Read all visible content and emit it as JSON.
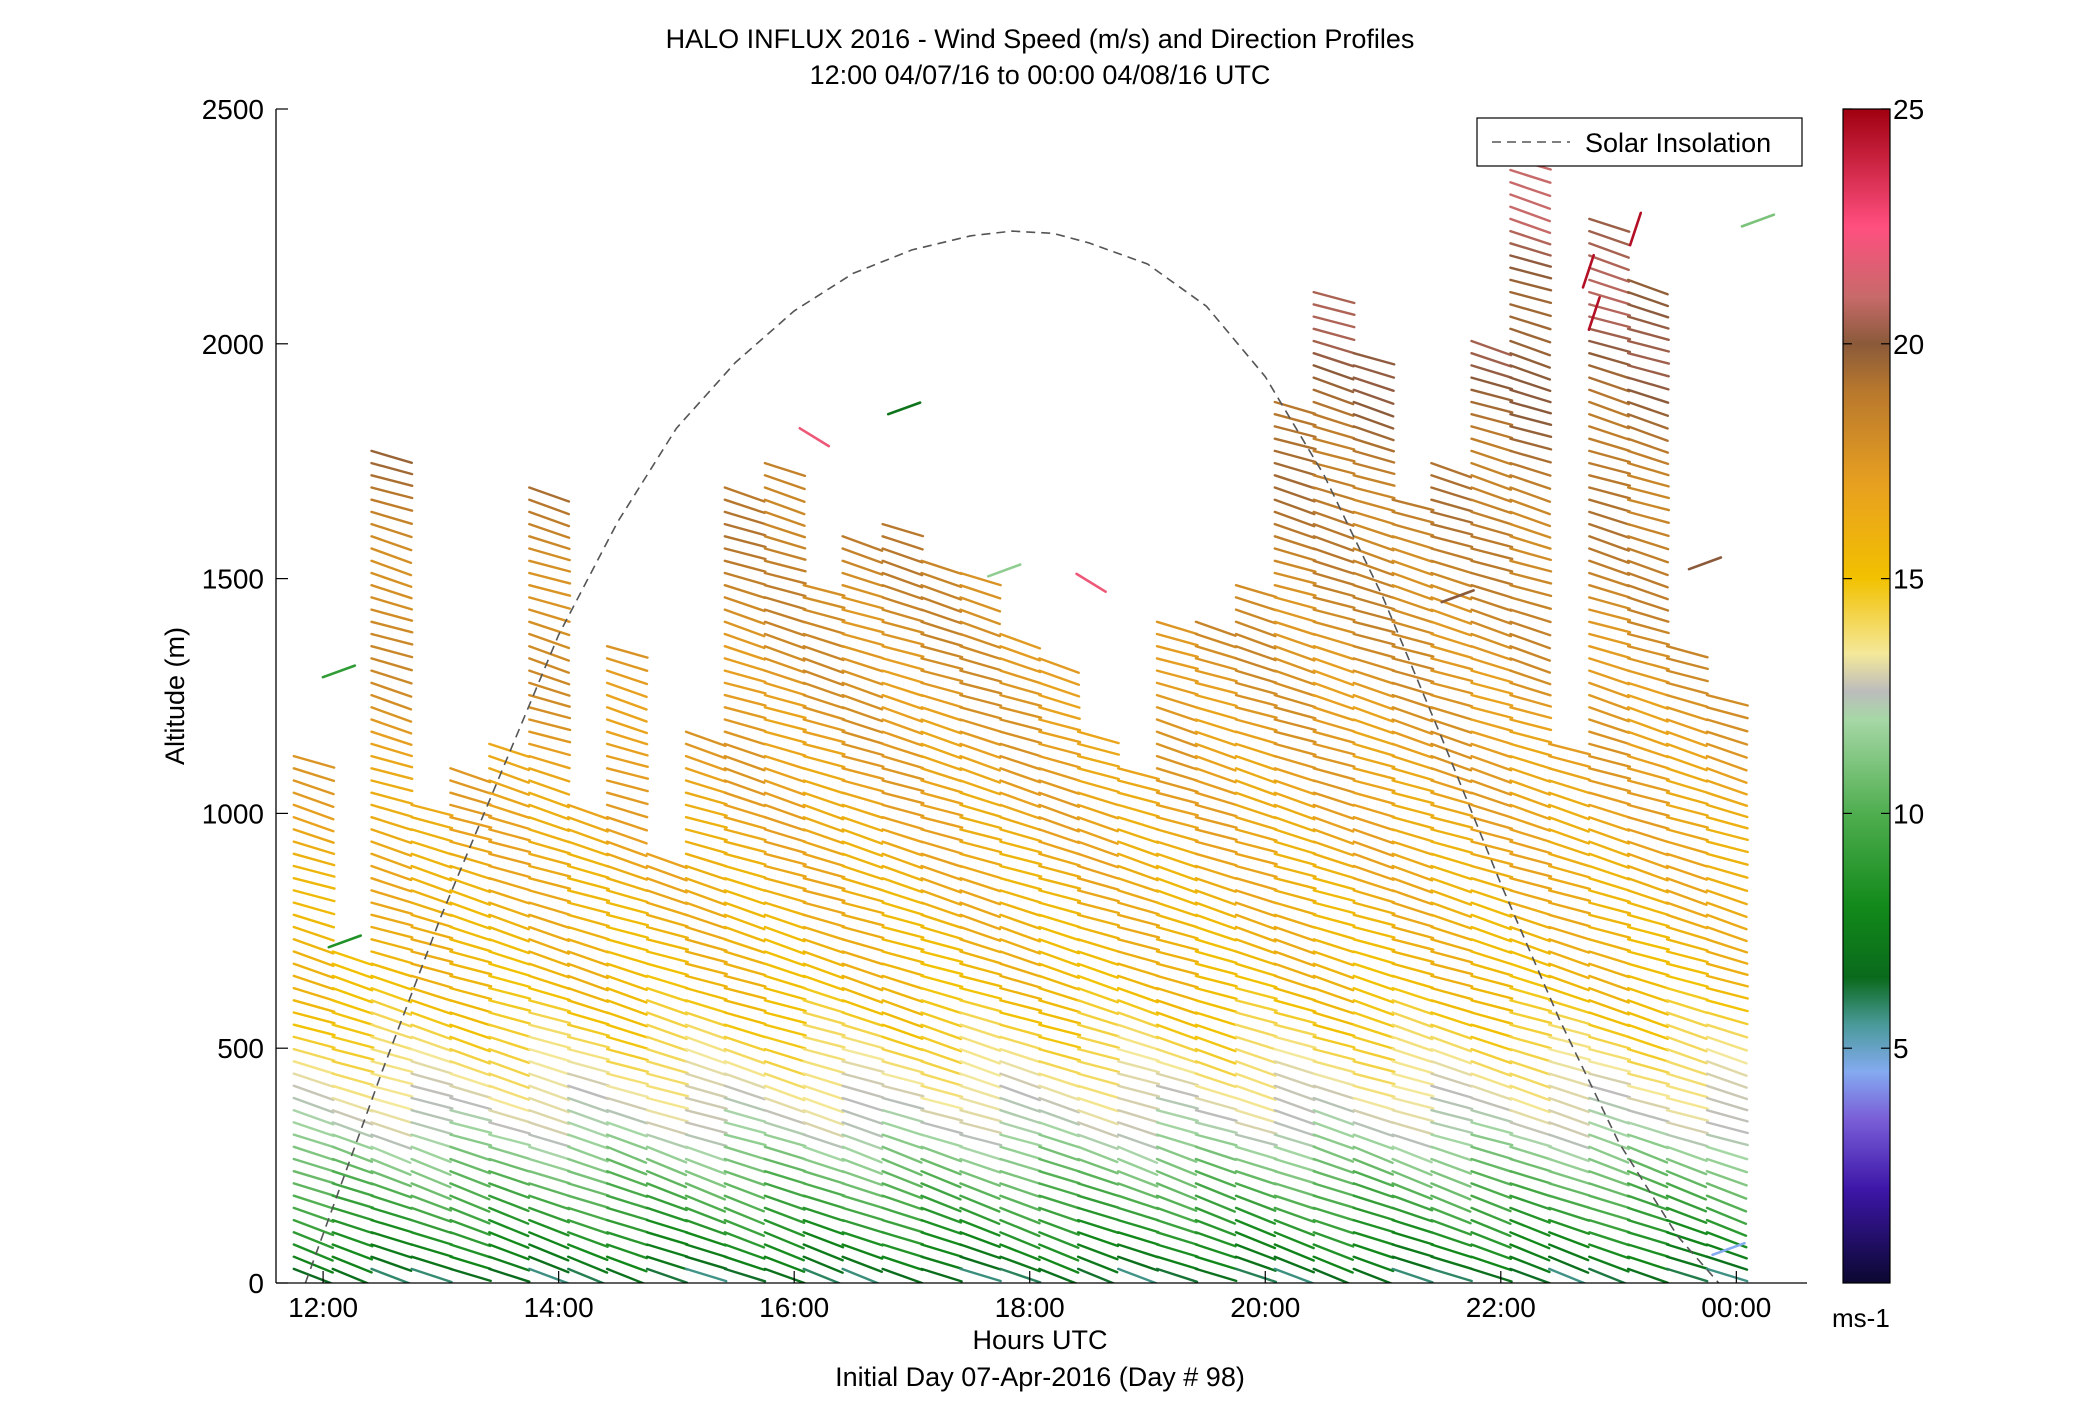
{
  "chart_data": {
    "type": "wind-barb-profile",
    "title": "HALO INFLUX 2016 - Wind Speed (m/s) and Direction Profiles",
    "subtitle": "12:00 04/07/16 to 00:00 04/08/16  UTC",
    "xlabel": "Hours UTC",
    "xlabel2": "Initial Day 07-Apr-2016 (Day # 98)",
    "ylabel": "Altitude (m)",
    "xlim": [
      11.6,
      24.6
    ],
    "ylim": [
      0,
      2500
    ],
    "xticks": [
      12,
      14,
      16,
      18,
      20,
      22,
      24
    ],
    "xtick_labels": [
      "12:00",
      "14:00",
      "16:00",
      "18:00",
      "20:00",
      "22:00",
      "00:00"
    ],
    "yticks": [
      0,
      500,
      1000,
      1500,
      2000,
      2500
    ],
    "ytick_labels": [
      "0",
      "500",
      "1000",
      "1500",
      "2000",
      "2500"
    ],
    "legend": {
      "entries": [
        "Solar Insolation"
      ],
      "placement": "top-right"
    },
    "solar_insolation": {
      "style": "dashed",
      "color": "#555555",
      "x": [
        11.85,
        12.5,
        13.0,
        13.5,
        14.0,
        14.5,
        15.0,
        15.5,
        16.0,
        16.5,
        17.0,
        17.5,
        17.85,
        18.2,
        18.5,
        19.0,
        19.5,
        20.0,
        20.5,
        21.0,
        21.5,
        22.0,
        22.5,
        23.0,
        23.5,
        23.85
      ],
      "y": [
        0,
        450,
        780,
        1080,
        1380,
        1620,
        1820,
        1960,
        2070,
        2150,
        2200,
        2230,
        2240,
        2235,
        2215,
        2170,
        2080,
        1930,
        1720,
        1460,
        1160,
        850,
        560,
        300,
        100,
        0
      ]
    },
    "colorbar": {
      "label": "ms-1",
      "range": [
        0,
        25
      ],
      "ticks": [
        5,
        10,
        15,
        20,
        25
      ],
      "colormap": [
        {
          "v": 0,
          "c": "#0b0830"
        },
        {
          "v": 2,
          "c": "#3d16a8"
        },
        {
          "v": 3.5,
          "c": "#7a5fd8"
        },
        {
          "v": 4.5,
          "c": "#84aaf0"
        },
        {
          "v": 5.5,
          "c": "#4a9a9a"
        },
        {
          "v": 6.5,
          "c": "#0a6a1c"
        },
        {
          "v": 8,
          "c": "#12891a"
        },
        {
          "v": 10,
          "c": "#4fae4f"
        },
        {
          "v": 12,
          "c": "#a6d7a6"
        },
        {
          "v": 12.6,
          "c": "#bcbcbc"
        },
        {
          "v": 13.4,
          "c": "#f4e89a"
        },
        {
          "v": 15,
          "c": "#f2c100"
        },
        {
          "v": 17,
          "c": "#e8a020"
        },
        {
          "v": 19,
          "c": "#b8782d"
        },
        {
          "v": 20,
          "c": "#8a5a3a"
        },
        {
          "v": 21,
          "c": "#c86a6a"
        },
        {
          "v": 22.5,
          "c": "#ff4f7f"
        },
        {
          "v": 25,
          "c": "#a00010"
        }
      ]
    },
    "profiles": [
      {
        "t": 11.87,
        "top": 1140
      },
      {
        "t": 12.2,
        "top": 720
      },
      {
        "t": 12.53,
        "top": 1790
      },
      {
        "t": 12.87,
        "top": 1020
      },
      {
        "t": 13.2,
        "top": 1110
      },
      {
        "t": 13.53,
        "top": 1170
      },
      {
        "t": 13.87,
        "top": 1710
      },
      {
        "t": 14.2,
        "top": 1040
      },
      {
        "t": 14.53,
        "top": 1380
      },
      {
        "t": 14.87,
        "top": 930
      },
      {
        "t": 15.2,
        "top": 1180
      },
      {
        "t": 15.53,
        "top": 1710
      },
      {
        "t": 15.87,
        "top": 1750
      },
      {
        "t": 16.2,
        "top": 1510
      },
      {
        "t": 16.53,
        "top": 1590
      },
      {
        "t": 16.87,
        "top": 1630
      },
      {
        "t": 17.2,
        "top": 1560
      },
      {
        "t": 17.53,
        "top": 1530
      },
      {
        "t": 17.87,
        "top": 1400
      },
      {
        "t": 18.2,
        "top": 1330
      },
      {
        "t": 18.53,
        "top": 1180
      },
      {
        "t": 18.87,
        "top": 1100
      },
      {
        "t": 19.2,
        "top": 1420
      },
      {
        "t": 19.53,
        "top": 1420
      },
      {
        "t": 19.87,
        "top": 1500
      },
      {
        "t": 20.2,
        "top": 1880
      },
      {
        "t": 20.53,
        "top": 2110
      },
      {
        "t": 20.87,
        "top": 2000
      },
      {
        "t": 21.2,
        "top": 1680
      },
      {
        "t": 21.53,
        "top": 1770
      },
      {
        "t": 21.87,
        "top": 2010
      },
      {
        "t": 22.2,
        "top": 2420
      },
      {
        "t": 22.53,
        "top": 1170
      },
      {
        "t": 22.87,
        "top": 2270
      },
      {
        "t": 23.2,
        "top": 2160
      },
      {
        "t": 23.53,
        "top": 1380
      },
      {
        "t": 23.87,
        "top": 1270
      }
    ],
    "isolated_barbs": [
      {
        "t": 12.1,
        "alt": 1290,
        "speed": 9
      },
      {
        "t": 12.15,
        "alt": 715,
        "speed": 8.5
      },
      {
        "t": 16.15,
        "alt": 1820,
        "speed": 22
      },
      {
        "t": 16.9,
        "alt": 1850,
        "speed": 7
      },
      {
        "t": 17.75,
        "alt": 1505,
        "speed": 11.5
      },
      {
        "t": 18.5,
        "alt": 1510,
        "speed": 22
      },
      {
        "t": 21.6,
        "alt": 1450,
        "speed": 20
      },
      {
        "t": 22.8,
        "alt": 2120,
        "speed": 24.5
      },
      {
        "t": 22.85,
        "alt": 2030,
        "speed": 24.5
      },
      {
        "t": 23.2,
        "alt": 2210,
        "speed": 24.5
      },
      {
        "t": 23.7,
        "alt": 1520,
        "speed": 20
      },
      {
        "t": 24.15,
        "alt": 2250,
        "speed": 11
      },
      {
        "t": 23.9,
        "alt": 60,
        "speed": 4.5
      }
    ]
  }
}
